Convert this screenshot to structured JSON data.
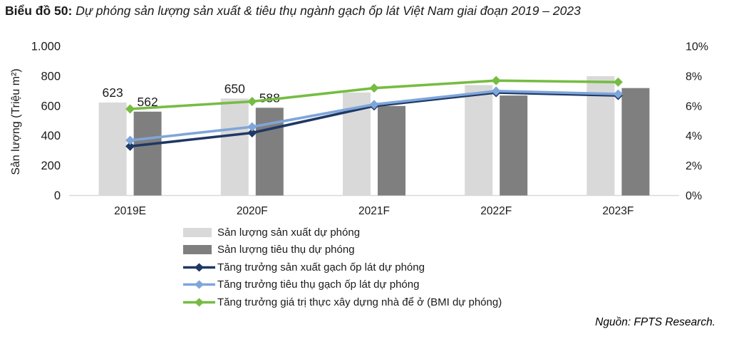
{
  "title": {
    "prefix": "Biểu đồ 50:",
    "text": "Dự phóng sản lượng sản xuất & tiêu thụ ngành gạch ốp lát Việt Nam giai đoạn 2019 – 2023"
  },
  "source": "Nguồn: FPTS Research.",
  "colors": {
    "bar_production": "#D9D9D9",
    "bar_consumption": "#7F7F7F",
    "line_production_growth": "#1F3864",
    "line_consumption_growth": "#7EA6D9",
    "line_construction_growth": "#76BC43",
    "axis_line": "#D9D9D9",
    "text": "#1a1a1a"
  },
  "chart_data": {
    "type": "bar+line",
    "title": "Dự phóng sản lượng sản xuất & tiêu thụ ngành gạch ốp lát Việt Nam giai đoạn 2019 – 2023",
    "categories": [
      "2019E",
      "2020F",
      "2021F",
      "2022F",
      "2023F"
    ],
    "bar_series": [
      {
        "id": "production-bar",
        "name": "Sản lượng sản xuất dự phóng",
        "color": "#D9D9D9",
        "values": [
          623,
          650,
          690,
          740,
          800
        ],
        "labels": [
          "623",
          "650",
          null,
          null,
          null
        ]
      },
      {
        "id": "consumption-bar",
        "name": "Sản lượng tiêu thụ dự phóng",
        "color": "#7F7F7F",
        "values": [
          562,
          588,
          600,
          670,
          720
        ],
        "labels": [
          "562",
          "588",
          null,
          null,
          null
        ]
      }
    ],
    "line_series": [
      {
        "id": "production-growth-line",
        "name": "Tăng trưởng sản xuất gạch ốp lát dự phóng",
        "color": "#1F3864",
        "unit": "%",
        "values": [
          3.3,
          4.2,
          6.0,
          6.9,
          6.7
        ]
      },
      {
        "id": "consumption-growth-line",
        "name": "Tăng trưởng tiêu thụ gạch ốp lát dự phóng",
        "color": "#7EA6D9",
        "unit": "%",
        "values": [
          3.7,
          4.6,
          6.1,
          7.0,
          6.8
        ]
      },
      {
        "id": "construction-growth-line",
        "name": "Tăng trưởng giá trị thực xây dựng nhà để ở (BMI dự phóng)",
        "color": "#76BC43",
        "unit": "%",
        "values": [
          5.8,
          6.3,
          7.2,
          7.7,
          7.6
        ]
      }
    ],
    "left_axis": {
      "title": "Sản lượng (Triệu m²)",
      "ticks": [
        "0",
        "200",
        "400",
        "600",
        "800",
        "1.000"
      ],
      "min": 0,
      "max": 1000
    },
    "right_axis": {
      "ticks": [
        "0%",
        "2%",
        "4%",
        "6%",
        "8%",
        "10%"
      ],
      "min": 0,
      "max": 10
    },
    "grid": false,
    "legend_position": "bottom"
  }
}
